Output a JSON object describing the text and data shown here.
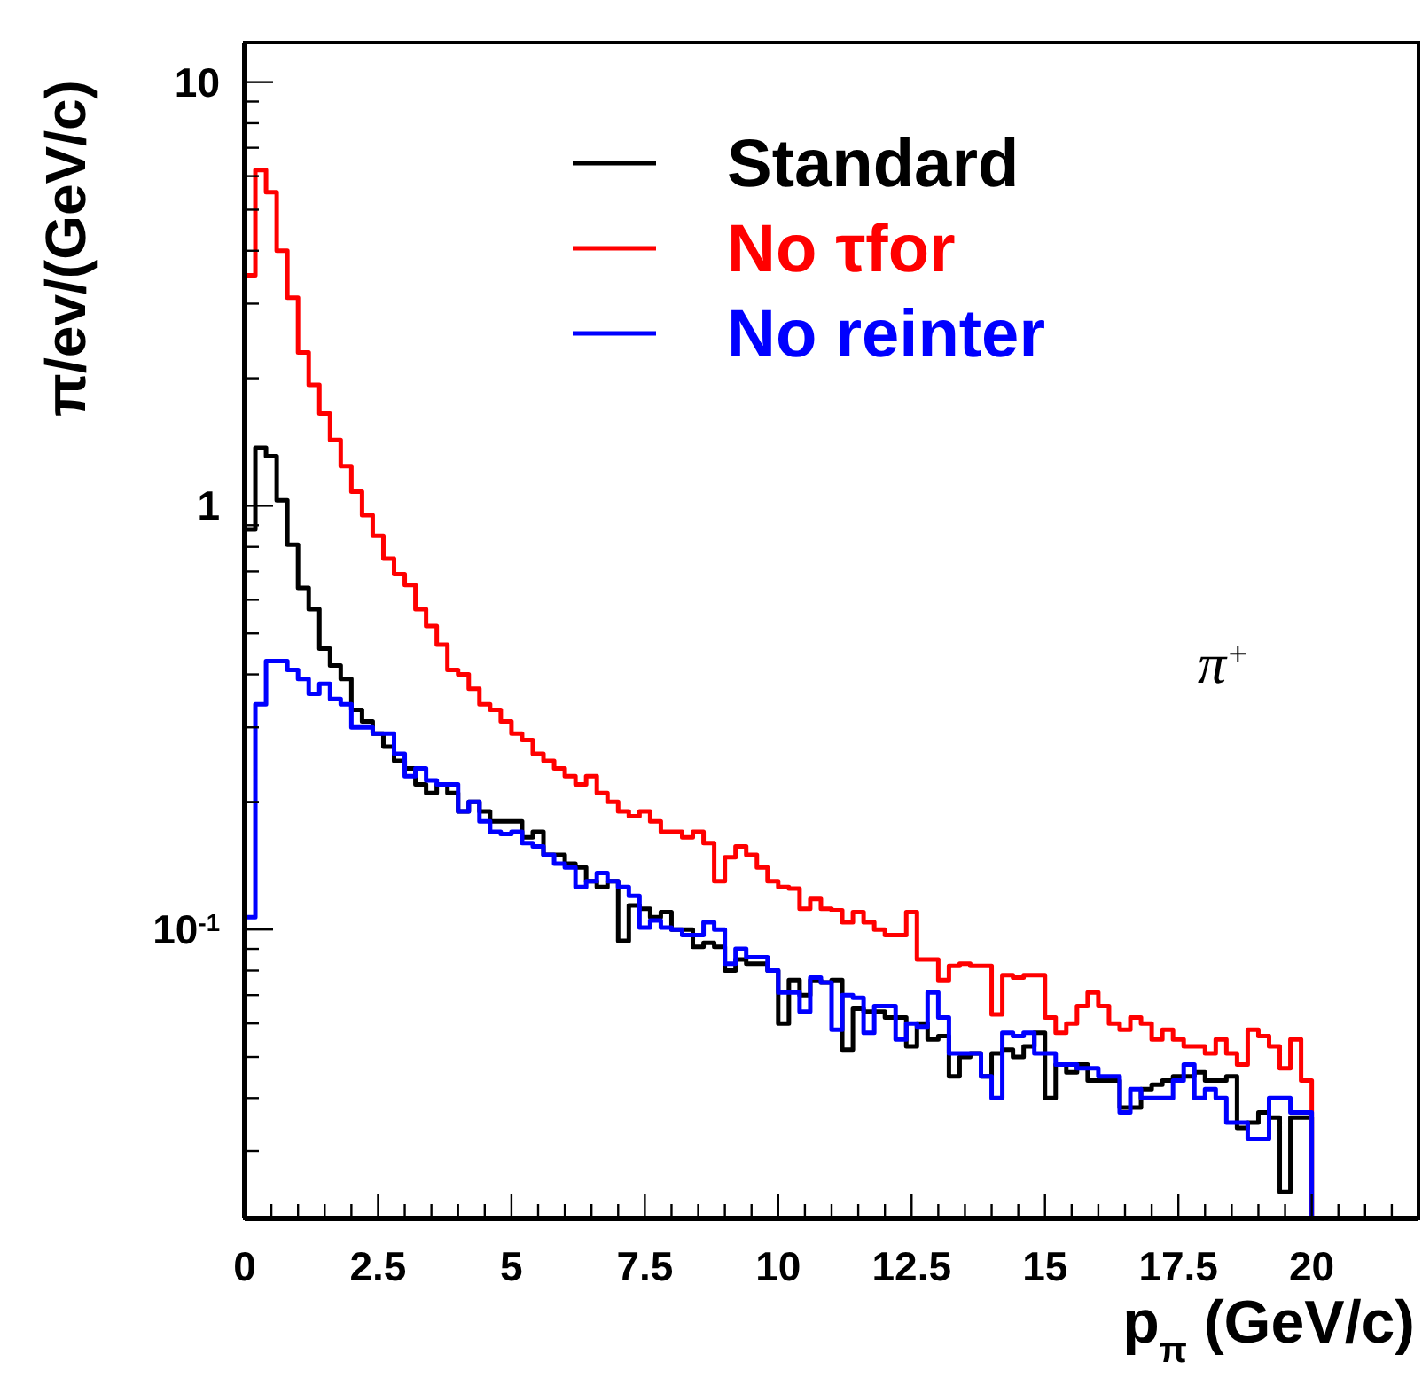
{
  "chart_data": {
    "type": "histogram",
    "xlabel": "p$_{π}$ (GeV/c)",
    "ylabel": "π/ev/(GeV/c)",
    "log": "y",
    "legend": "top",
    "grid": false,
    "bins": [
      0,
      0.2,
      0.4,
      0.6,
      0.8,
      1,
      1.2,
      1.4,
      1.6,
      1.8,
      2,
      2.2,
      2.4,
      2.6,
      2.8,
      3,
      3.2,
      3.4,
      3.6,
      3.8,
      4,
      4.2,
      4.4,
      4.6,
      4.8,
      5,
      5.2,
      5.4,
      5.6,
      5.8,
      6,
      6.2,
      6.4,
      6.6,
      6.8,
      7,
      7.2,
      7.4,
      7.6,
      7.8,
      8,
      8.2,
      8.4,
      8.6,
      8.8,
      9,
      9.2,
      9.4,
      9.6,
      9.8,
      10,
      10.2,
      10.4,
      10.6,
      10.8,
      11,
      11.2,
      11.4,
      11.6,
      11.8,
      12,
      12.2,
      12.4,
      12.6,
      12.8,
      13,
      13.2,
      13.4,
      13.6,
      13.8,
      14,
      14.2,
      14.4,
      14.6,
      14.8,
      15,
      15.2,
      15.4,
      15.6,
      15.8,
      16,
      16.2,
      16.4,
      16.6,
      16.8,
      17,
      17.2,
      17.4,
      17.6,
      17.8,
      18,
      18.2,
      18.4,
      18.6,
      18.8,
      19,
      19.2,
      19.4,
      19.6,
      19.8,
      20
    ],
    "series": [
      {
        "name": "Standard",
        "color": "#000000",
        "values": [
          0.88,
          1.37,
          1.31,
          1.03,
          0.81,
          0.64,
          0.57,
          0.46,
          0.42,
          0.39,
          0.33,
          0.31,
          0.29,
          0.27,
          0.25,
          0.24,
          0.22,
          0.21,
          0.22,
          0.21,
          0.19,
          0.2,
          0.19,
          0.18,
          0.18,
          0.18,
          0.165,
          0.17,
          0.15,
          0.15,
          0.143,
          0.14,
          0.13,
          0.126,
          0.13,
          0.094,
          0.114,
          0.112,
          0.107,
          0.11,
          0.1,
          0.1,
          0.091,
          0.093,
          0.091,
          0.08,
          0.085,
          0.083,
          0.083,
          0.08,
          0.06,
          0.076,
          0.07,
          0.076,
          0.075,
          0.076,
          0.052,
          0.065,
          0.064,
          0.064,
          0.062,
          0.062,
          0.053,
          0.06,
          0.055,
          0.056,
          0.045,
          0.05,
          0.051,
          0.045,
          0.051,
          0.052,
          0.05,
          0.053,
          0.057,
          0.04,
          0.048,
          0.046,
          0.048,
          0.044,
          0.044,
          0.044,
          0.038,
          0.038,
          0.042,
          0.043,
          0.044,
          0.045,
          0.045,
          0.046,
          0.044,
          0.044,
          0.045,
          0.034,
          0.035,
          0.037,
          0.036,
          0.024,
          0.036,
          0.036
        ]
      },
      {
        "name": "No τfor",
        "color": "#ff0000",
        "values": [
          3.5,
          6.2,
          5.5,
          4.0,
          3.1,
          2.3,
          1.93,
          1.65,
          1.43,
          1.24,
          1.08,
          0.95,
          0.85,
          0.75,
          0.69,
          0.65,
          0.57,
          0.52,
          0.47,
          0.41,
          0.4,
          0.37,
          0.34,
          0.33,
          0.31,
          0.29,
          0.28,
          0.26,
          0.25,
          0.24,
          0.23,
          0.22,
          0.23,
          0.21,
          0.2,
          0.19,
          0.185,
          0.19,
          0.18,
          0.17,
          0.17,
          0.165,
          0.17,
          0.16,
          0.13,
          0.148,
          0.157,
          0.15,
          0.14,
          0.13,
          0.126,
          0.125,
          0.112,
          0.118,
          0.112,
          0.111,
          0.104,
          0.11,
          0.104,
          0.1,
          0.097,
          0.097,
          0.11,
          0.085,
          0.085,
          0.076,
          0.082,
          0.083,
          0.082,
          0.082,
          0.063,
          0.078,
          0.077,
          0.078,
          0.078,
          0.062,
          0.057,
          0.06,
          0.066,
          0.071,
          0.066,
          0.06,
          0.058,
          0.062,
          0.06,
          0.055,
          0.058,
          0.055,
          0.053,
          0.053,
          0.051,
          0.055,
          0.051,
          0.048,
          0.058,
          0.056,
          0.053,
          0.047,
          0.055,
          0.044
        ]
      },
      {
        "name": "No reinter",
        "color": "#0000ff",
        "values": [
          0.107,
          0.34,
          0.43,
          0.43,
          0.41,
          0.39,
          0.36,
          0.38,
          0.35,
          0.34,
          0.3,
          0.3,
          0.29,
          0.29,
          0.26,
          0.23,
          0.24,
          0.225,
          0.22,
          0.22,
          0.19,
          0.2,
          0.18,
          0.17,
          0.168,
          0.17,
          0.16,
          0.157,
          0.15,
          0.143,
          0.14,
          0.126,
          0.13,
          0.136,
          0.13,
          0.126,
          0.12,
          0.101,
          0.105,
          0.101,
          0.1,
          0.097,
          0.097,
          0.104,
          0.1,
          0.083,
          0.09,
          0.086,
          0.086,
          0.08,
          0.071,
          0.071,
          0.064,
          0.077,
          0.075,
          0.058,
          0.07,
          0.069,
          0.057,
          0.066,
          0.066,
          0.055,
          0.06,
          0.059,
          0.071,
          0.062,
          0.051,
          0.051,
          0.051,
          0.045,
          0.04,
          0.057,
          0.056,
          0.057,
          0.051,
          0.051,
          0.048,
          0.048,
          0.047,
          0.047,
          0.045,
          0.045,
          0.037,
          0.042,
          0.04,
          0.04,
          0.04,
          0.044,
          0.048,
          0.04,
          0.042,
          0.04,
          0.035,
          0.035,
          0.032,
          0.032,
          0.04,
          0.04,
          0.037,
          0.037
        ]
      }
    ],
    "xlim": [
      0,
      22
    ],
    "ylim": [
      0.0208,
      12.4
    ],
    "xticks": [
      0,
      {
        "value": 0.5,
        "label": null
      },
      {
        "value": 1,
        "label": null
      },
      {
        "value": 1.5,
        "label": null
      },
      {
        "value": 2,
        "label": null
      },
      2.5,
      {
        "value": 3,
        "label": null
      },
      {
        "value": 3.5,
        "label": null
      },
      {
        "value": 4,
        "label": null
      },
      {
        "value": 4.5,
        "label": null
      },
      5,
      {
        "value": 5.5,
        "label": null
      },
      {
        "value": 6,
        "label": null
      },
      {
        "value": 6.5,
        "label": null
      },
      {
        "value": 7,
        "label": null
      },
      7.5,
      {
        "value": 8,
        "label": null
      },
      {
        "value": 8.5,
        "label": null
      },
      {
        "value": 9,
        "label": null
      },
      {
        "value": 9.5,
        "label": null
      },
      10,
      {
        "value": 10.5,
        "label": null
      },
      {
        "value": 11,
        "label": null
      },
      {
        "value": 11.5,
        "label": null
      },
      {
        "value": 12,
        "label": null
      },
      12.5,
      {
        "value": 13,
        "label": null
      },
      {
        "value": 13.5,
        "label": null
      },
      {
        "value": 14,
        "label": null
      },
      {
        "value": 14.5,
        "label": null
      },
      15,
      {
        "value": 15.5,
        "label": null
      },
      {
        "value": 16,
        "label": null
      },
      {
        "value": 16.5,
        "label": null
      },
      {
        "value": 17,
        "label": null
      },
      17.5,
      {
        "value": 18,
        "label": null
      },
      {
        "value": 18.5,
        "label": null
      },
      {
        "value": 19,
        "label": null
      },
      {
        "value": 19.5,
        "label": null
      },
      20,
      {
        "value": 20.5,
        "label": null
      },
      {
        "value": 21,
        "label": null
      },
      {
        "value": 21.5,
        "label": null
      }
    ],
    "yticks": [
      {
        "value": 0.03,
        "label": null
      },
      {
        "value": 0.04,
        "label": null
      },
      {
        "value": 0.05,
        "label": null
      },
      {
        "value": 0.06,
        "label": null
      },
      {
        "value": 0.07,
        "label": null
      },
      {
        "value": 0.08,
        "label": null
      },
      {
        "value": 0.09,
        "label": null
      },
      {
        "value": 0.1,
        "label": "10$^{-1}$"
      },
      {
        "value": 0.2,
        "label": null
      },
      {
        "value": 0.3,
        "label": null
      },
      {
        "value": 0.4,
        "label": null
      },
      {
        "value": 0.5,
        "label": null
      },
      {
        "value": 0.6,
        "label": null
      },
      {
        "value": 0.7,
        "label": null
      },
      {
        "value": 0.8,
        "label": null
      },
      {
        "value": 0.9,
        "label": null
      },
      1,
      {
        "value": 2,
        "label": null
      },
      {
        "value": 3,
        "label": null
      },
      {
        "value": 4,
        "label": null
      },
      {
        "value": 5,
        "label": null
      },
      {
        "value": 6,
        "label": null
      },
      {
        "value": 7,
        "label": null
      },
      {
        "value": 8,
        "label": null
      },
      {
        "value": 9,
        "label": null
      },
      10
    ],
    "annotations": [
      "π$^{+}$"
    ]
  }
}
